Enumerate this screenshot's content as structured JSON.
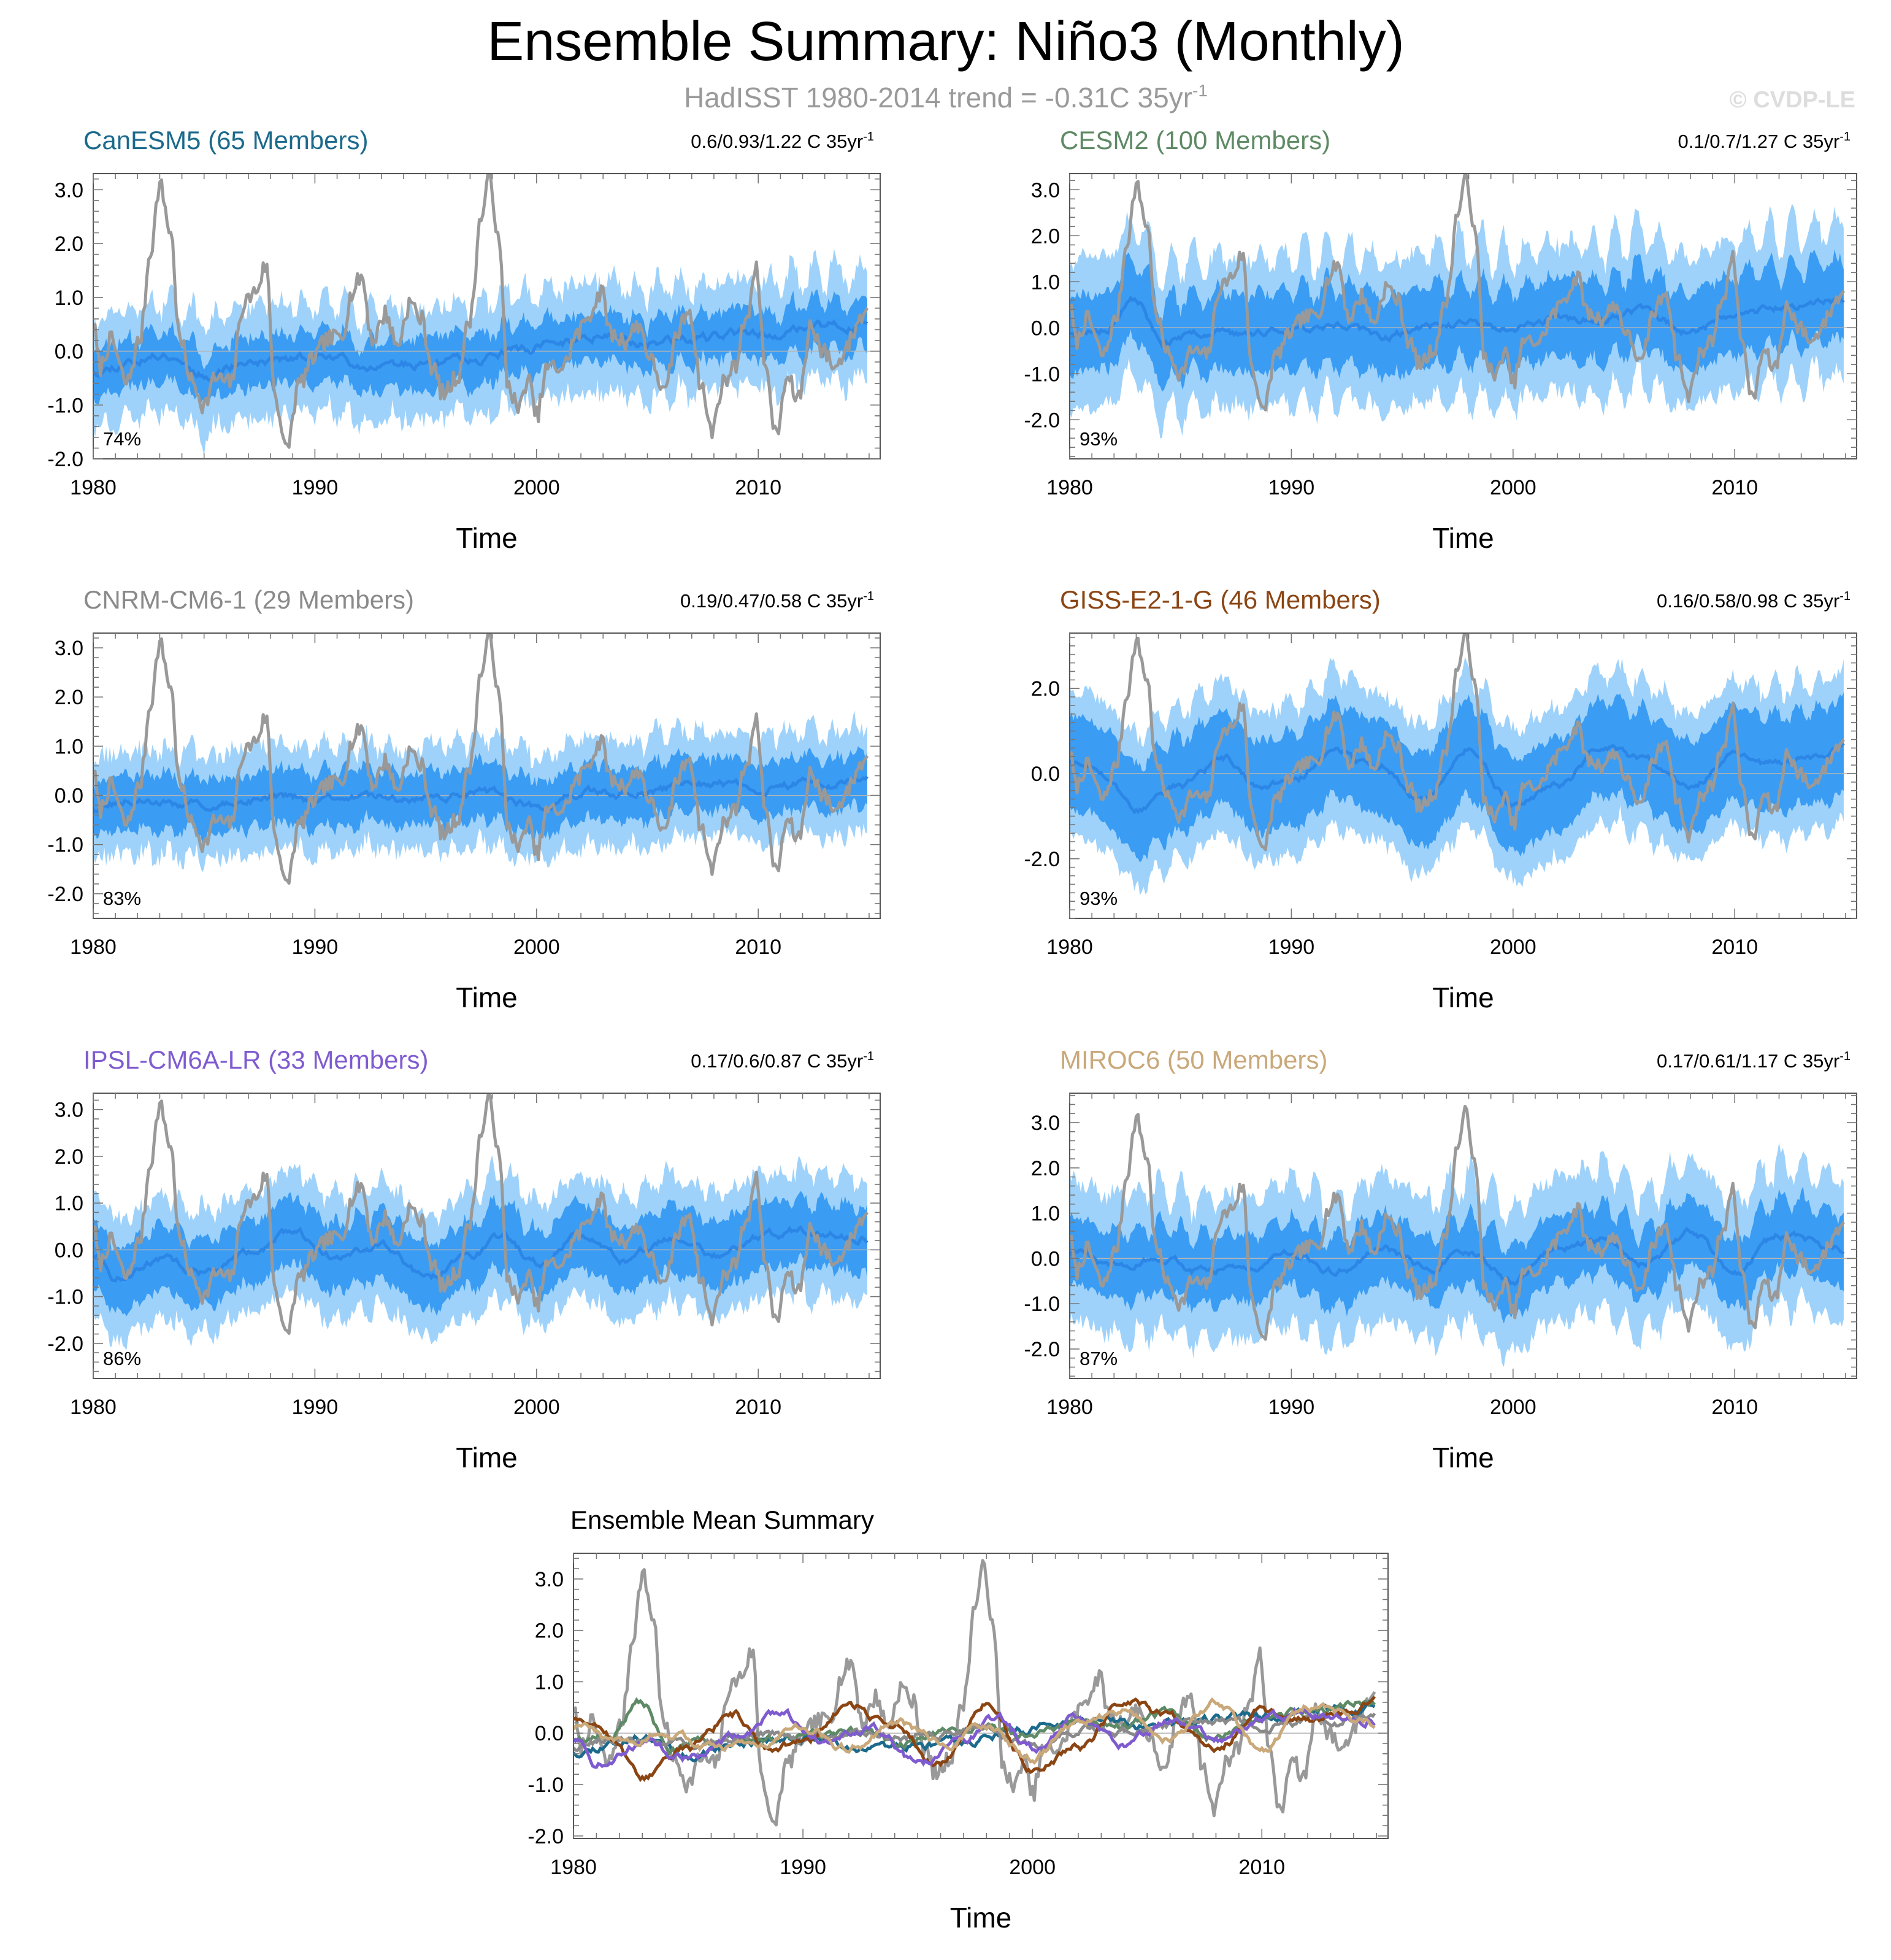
{
  "header": {
    "title": "Ensemble Summary: Niño3 (Monthly)",
    "subtitle_main": "HadISST 1980-2014 trend = -0.31C 35yr",
    "subtitle_sup": "-1",
    "watermark": "© CVDP-LE"
  },
  "axis_common": {
    "xlabel": "Time",
    "xticks": [
      "1980",
      "1990",
      "2000",
      "2010"
    ],
    "xlim": [
      1980,
      2015.5
    ]
  },
  "colors": {
    "band_outer": "#9ed2fa",
    "band_inner": "#3a9cf3",
    "ens_mean": "#2c86e6",
    "obs": "#999999",
    "zero_line": "#b5b5b5"
  },
  "chart_data": [
    {
      "type": "area",
      "id": "canesm5",
      "title": "CanESM5 (65 Members)",
      "title_color": "#1c6a8c",
      "trend_text": "0.6/0.93/1.22 C 35yr",
      "trend_sup": "-1",
      "percent_label": "74%",
      "ylim": [
        -2.0,
        3.3
      ],
      "yticks": [
        3.0,
        2.0,
        1.0,
        0.0,
        -1.0,
        -2.0
      ],
      "ytick_labels": [
        "3.0",
        "2.0",
        "1.0",
        "0.0",
        "-1.0",
        "-2.0"
      ],
      "xlabel": "Time",
      "ens_mean_knots": [
        [
          1980,
          -0.35
        ],
        [
          1982,
          -0.15
        ],
        [
          1983.5,
          -0.05
        ],
        [
          1985,
          -0.42
        ],
        [
          1987,
          -0.2
        ],
        [
          1990,
          -0.12
        ],
        [
          1993,
          -0.25
        ],
        [
          1995,
          -0.25
        ],
        [
          1997,
          -0.15
        ],
        [
          1999,
          0.0
        ],
        [
          2001,
          0.15
        ],
        [
          2003,
          0.3
        ],
        [
          2005,
          0.18
        ],
        [
          2007,
          0.2
        ],
        [
          2009,
          0.3
        ],
        [
          2011,
          0.35
        ],
        [
          2013,
          0.45
        ],
        [
          2015,
          0.5
        ]
      ],
      "spread": {
        "inner": 0.45,
        "outer": 0.95
      },
      "osc_amp": 0.3,
      "seed": 11
    },
    {
      "type": "area",
      "id": "cesm2",
      "title": "CESM2 (100 Members)",
      "title_color": "#5e8a65",
      "trend_text": "0.1/0.7/1.27 C 35yr",
      "trend_sup": "-1",
      "percent_label": "93%",
      "ylim": [
        -2.85,
        3.35
      ],
      "yticks": [
        3.0,
        2.0,
        1.0,
        0.0,
        -1.0,
        -2.0
      ],
      "ytick_labels": [
        "3.0",
        "2.0",
        "1.0",
        "0.0",
        "-1.0",
        "-2.0"
      ],
      "xlabel": "Time",
      "ens_mean_knots": [
        [
          1980,
          -0.1
        ],
        [
          1981.5,
          -0.05
        ],
        [
          1983,
          0.6
        ],
        [
          1984.2,
          -0.35
        ],
        [
          1986,
          -0.1
        ],
        [
          1988,
          -0.15
        ],
        [
          1990,
          0.0
        ],
        [
          1992,
          0.1
        ],
        [
          1994,
          -0.2
        ],
        [
          1996,
          0.0
        ],
        [
          1998,
          0.1
        ],
        [
          2000,
          -0.05
        ],
        [
          2002,
          0.2
        ],
        [
          2004,
          0.15
        ],
        [
          2006,
          0.35
        ],
        [
          2008,
          -0.1
        ],
        [
          2010,
          0.3
        ],
        [
          2012,
          0.45
        ],
        [
          2015,
          0.6
        ]
      ],
      "spread": {
        "inner": 0.85,
        "outer": 1.55
      },
      "osc_amp": 0.55,
      "seed": 23
    },
    {
      "type": "area",
      "id": "cnrm",
      "title": "CNRM-CM6-1 (29 Members)",
      "title_color": "#8a8a8a",
      "trend_text": "0.19/0.47/0.58 C 35yr",
      "trend_sup": "-1",
      "percent_label": "83%",
      "ylim": [
        -2.5,
        3.3
      ],
      "yticks": [
        3.0,
        2.0,
        1.0,
        0.0,
        -1.0,
        -2.0
      ],
      "ytick_labels": [
        "3.0",
        "2.0",
        "1.0",
        "0.0",
        "-1.0",
        "-2.0"
      ],
      "xlabel": "Time",
      "ens_mean_knots": [
        [
          1980,
          -0.25
        ],
        [
          1982,
          -0.1
        ],
        [
          1984,
          -0.2
        ],
        [
          1986,
          -0.2
        ],
        [
          1988,
          0.0
        ],
        [
          1990,
          -0.1
        ],
        [
          1992,
          -0.05
        ],
        [
          1994,
          -0.1
        ],
        [
          1996,
          0.0
        ],
        [
          1998,
          0.05
        ],
        [
          2000,
          -0.25
        ],
        [
          2002,
          0.1
        ],
        [
          2004,
          0.0
        ],
        [
          2006,
          0.15
        ],
        [
          2008,
          0.2
        ],
        [
          2010,
          0.15
        ],
        [
          2012,
          0.2
        ],
        [
          2015,
          0.3
        ]
      ],
      "spread": {
        "inner": 0.55,
        "outer": 1.0
      },
      "osc_amp": 0.2,
      "seed": 37
    },
    {
      "type": "area",
      "id": "giss",
      "title": "GISS-E2-1-G (46 Members)",
      "title_color": "#8b4513",
      "trend_text": "0.16/0.58/0.98 C 35yr",
      "trend_sup": "-1",
      "percent_label": "93%",
      "ylim": [
        -3.4,
        3.3
      ],
      "yticks": [
        2.0,
        0.0,
        -2.0
      ],
      "ytick_labels": [
        "2.0",
        "0.0",
        "-2.0"
      ],
      "xlabel": "Time",
      "ens_mean_knots": [
        [
          1980,
          0.3
        ],
        [
          1981,
          0.25
        ],
        [
          1983,
          -0.85
        ],
        [
          1985,
          -0.3
        ],
        [
          1987,
          0.35
        ],
        [
          1988.5,
          -0.3
        ],
        [
          1990,
          -0.2
        ],
        [
          1992,
          0.5
        ],
        [
          1994,
          0.2
        ],
        [
          1996,
          -0.6
        ],
        [
          1998,
          0.6
        ],
        [
          2000,
          -0.7
        ],
        [
          2002,
          -0.3
        ],
        [
          2004,
          0.6
        ],
        [
          2006,
          0.3
        ],
        [
          2008,
          -0.3
        ],
        [
          2010,
          0.4
        ],
        [
          2012,
          0.2
        ],
        [
          2015,
          0.6
        ]
      ],
      "spread": {
        "inner": 1.1,
        "outer": 1.7
      },
      "osc_amp": 0.3,
      "seed": 53
    },
    {
      "type": "area",
      "id": "ipsl",
      "title": "IPSL-CM6A-LR (33 Members)",
      "title_color": "#7f5bd0",
      "trend_text": "0.17/0.6/0.87 C 35yr",
      "trend_sup": "-1",
      "percent_label": "86%",
      "ylim": [
        -2.75,
        3.35
      ],
      "yticks": [
        3.0,
        2.0,
        1.0,
        0.0,
        -1.0,
        -2.0
      ],
      "ytick_labels": [
        "3.0",
        "2.0",
        "1.0",
        "0.0",
        "-1.0",
        "-2.0"
      ],
      "xlabel": "Time",
      "ens_mean_knots": [
        [
          1980,
          -0.1
        ],
        [
          1981,
          -0.6
        ],
        [
          1983,
          -0.2
        ],
        [
          1985,
          -0.5
        ],
        [
          1987,
          -0.1
        ],
        [
          1989,
          0.4
        ],
        [
          1991,
          -0.2
        ],
        [
          1993,
          0.1
        ],
        [
          1995,
          -0.6
        ],
        [
          1997,
          -0.1
        ],
        [
          1998.5,
          0.3
        ],
        [
          2000,
          -0.3
        ],
        [
          2002,
          0.3
        ],
        [
          2004,
          -0.2
        ],
        [
          2006,
          0.2
        ],
        [
          2008,
          -0.15
        ],
        [
          2010,
          0.25
        ],
        [
          2012,
          0.4
        ],
        [
          2015,
          0.25
        ]
      ],
      "spread": {
        "inner": 0.7,
        "outer": 1.25
      },
      "osc_amp": 0.25,
      "seed": 71
    },
    {
      "type": "area",
      "id": "miroc6",
      "title": "MIROC6 (50 Members)",
      "title_color": "#c9a87a",
      "trend_text": "0.17/0.61/1.17 C 35yr",
      "trend_sup": "-1",
      "percent_label": "87%",
      "ylim": [
        -2.65,
        3.65
      ],
      "yticks": [
        3.0,
        2.0,
        1.0,
        0.0,
        -1.0,
        -2.0
      ],
      "ytick_labels": [
        "3.0",
        "2.0",
        "1.0",
        "0.0",
        "-1.0",
        "-2.0"
      ],
      "xlabel": "Time",
      "ens_mean_knots": [
        [
          1980,
          0.1
        ],
        [
          1982,
          -0.2
        ],
        [
          1984,
          0.0
        ],
        [
          1986,
          -0.3
        ],
        [
          1988,
          -0.2
        ],
        [
          1990,
          0.1
        ],
        [
          1992,
          -0.3
        ],
        [
          1994,
          0.2
        ],
        [
          1996,
          -0.2
        ],
        [
          1998,
          0.1
        ],
        [
          2000,
          -0.5
        ],
        [
          2002,
          0.2
        ],
        [
          2004,
          0.4
        ],
        [
          2006,
          -0.1
        ],
        [
          2008,
          0.6
        ],
        [
          2010,
          -0.3
        ],
        [
          2012,
          0.5
        ],
        [
          2015,
          0.2
        ]
      ],
      "spread": {
        "inner": 0.75,
        "outer": 1.5
      },
      "osc_amp": 0.45,
      "seed": 89
    }
  ],
  "observations": {
    "name": "HadISST",
    "knots": [
      [
        1980,
        0.5
      ],
      [
        1980.3,
        -0.3
      ],
      [
        1980.8,
        0.2
      ],
      [
        1981.5,
        -0.6
      ],
      [
        1982.1,
        0.2
      ],
      [
        1982.6,
        1.9
      ],
      [
        1983.0,
        3.1
      ],
      [
        1983.5,
        2.2
      ],
      [
        1983.9,
        0.2
      ],
      [
        1984.5,
        -0.6
      ],
      [
        1985.0,
        -1.0
      ],
      [
        1985.5,
        -0.5
      ],
      [
        1986.2,
        -0.6
      ],
      [
        1986.8,
        0.9
      ],
      [
        1987.3,
        1.1
      ],
      [
        1987.8,
        1.6
      ],
      [
        1988.2,
        -0.8
      ],
      [
        1988.7,
        -1.85
      ],
      [
        1989.3,
        -0.6
      ],
      [
        1990.0,
        -0.1
      ],
      [
        1990.5,
        0.2
      ],
      [
        1991.2,
        0.3
      ],
      [
        1991.7,
        1.1
      ],
      [
        1992.1,
        1.4
      ],
      [
        1992.6,
        0.2
      ],
      [
        1993.2,
        0.7
      ],
      [
        1993.7,
        0.1
      ],
      [
        1994.3,
        0.9
      ],
      [
        1994.8,
        0.6
      ],
      [
        1995.3,
        -0.3
      ],
      [
        1995.8,
        -0.8
      ],
      [
        1996.4,
        -0.5
      ],
      [
        1997.0,
        0.6
      ],
      [
        1997.5,
        2.5
      ],
      [
        1997.9,
        3.25
      ],
      [
        1998.3,
        2.0
      ],
      [
        1998.7,
        -0.6
      ],
      [
        1999.2,
        -1.1
      ],
      [
        1999.6,
        -0.5
      ],
      [
        2000.0,
        -1.2
      ],
      [
        2000.5,
        -0.3
      ],
      [
        2001.2,
        -0.3
      ],
      [
        2001.8,
        0.3
      ],
      [
        2002.4,
        0.7
      ],
      [
        2002.9,
        1.1
      ],
      [
        2003.4,
        0.3
      ],
      [
        2004.0,
        0.2
      ],
      [
        2004.6,
        0.5
      ],
      [
        2005.2,
        -0.2
      ],
      [
        2005.8,
        -0.8
      ],
      [
        2006.3,
        0.3
      ],
      [
        2006.9,
        0.8
      ],
      [
        2007.4,
        -0.6
      ],
      [
        2007.9,
        -1.5
      ],
      [
        2008.4,
        -0.6
      ],
      [
        2008.9,
        -0.3
      ],
      [
        2009.5,
        0.7
      ],
      [
        2009.9,
        1.5
      ],
      [
        2010.4,
        -0.5
      ],
      [
        2010.8,
        -1.6
      ],
      [
        2011.3,
        -0.5
      ],
      [
        2011.8,
        -0.9
      ],
      [
        2012.4,
        0.5
      ],
      [
        2012.9,
        0.0
      ],
      [
        2013.5,
        -0.3
      ],
      [
        2014.0,
        0.1
      ],
      [
        2014.6,
        0.6
      ],
      [
        2015.0,
        0.9
      ]
    ]
  },
  "summary": {
    "title": "Ensemble Mean Summary",
    "xlabel": "Time",
    "ylim": [
      -2.05,
      3.5
    ],
    "yticks": [
      3.0,
      2.0,
      1.0,
      0.0,
      -1.0,
      -2.0
    ],
    "ytick_labels": [
      "3.0",
      "2.0",
      "1.0",
      "0.0",
      "-1.0",
      "-2.0"
    ],
    "series": [
      {
        "name": "CanESM5",
        "color": "#1c6a8c"
      },
      {
        "name": "CESM2",
        "color": "#5e8a65"
      },
      {
        "name": "CNRM-CM6-1",
        "color": "#8a8a8a"
      },
      {
        "name": "GISS-E2-1-G",
        "color": "#8b4513"
      },
      {
        "name": "IPSL-CM6A-LR",
        "color": "#7f5bd0"
      },
      {
        "name": "MIROC6",
        "color": "#c9a87a"
      }
    ]
  }
}
